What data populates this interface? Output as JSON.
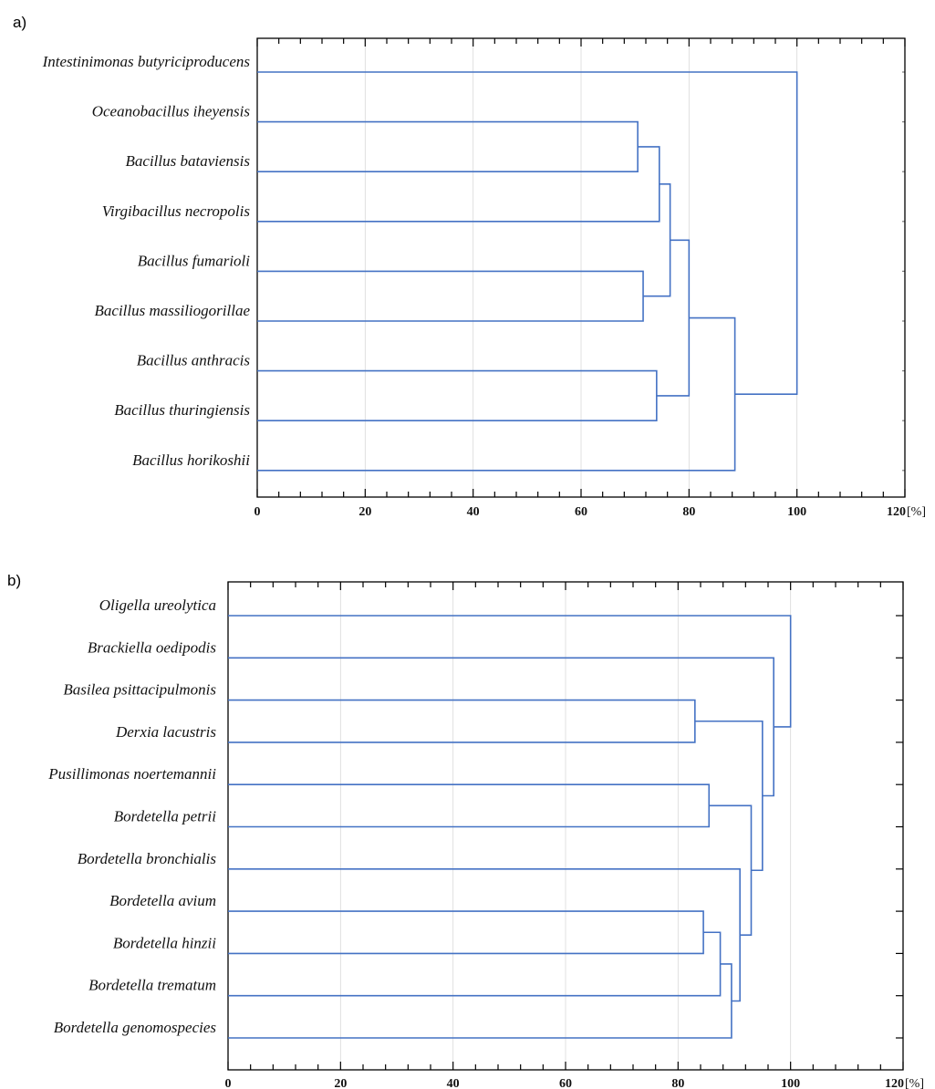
{
  "chart_data": [
    {
      "type": "dendrogram",
      "panel_label": "a)",
      "xlim": [
        0,
        120
      ],
      "x_ticks": [
        0,
        20,
        40,
        60,
        80,
        100,
        120
      ],
      "x_unit": "[%]",
      "line_color": "#4472c4",
      "leaves": [
        "Intestinimonas butyriciproducens",
        "Oceanobacillus iheyensis",
        "Bacillus bataviensis",
        "Virgibacillus necropolis",
        "Bacillus fumarioli",
        "Bacillus massiliogorillae",
        "Bacillus anthracis",
        "Bacillus thuringiensis",
        "Bacillus horikoshii"
      ],
      "merges": [
        {
          "children": [
            "L1",
            "L2"
          ],
          "height": 70.5
        },
        {
          "children": [
            "M0",
            "L3"
          ],
          "height": 74.5
        },
        {
          "children": [
            "L4",
            "L5"
          ],
          "height": 71.5
        },
        {
          "children": [
            "M1",
            "M2"
          ],
          "height": 76.5
        },
        {
          "children": [
            "L6",
            "L7"
          ],
          "height": 74.0
        },
        {
          "children": [
            "M3",
            "M4"
          ],
          "height": 80.0
        },
        {
          "children": [
            "M5",
            "L8"
          ],
          "height": 88.5
        },
        {
          "children": [
            "L0",
            "M6"
          ],
          "height": 100.0
        }
      ]
    },
    {
      "type": "dendrogram",
      "panel_label": "b)",
      "xlim": [
        0,
        120
      ],
      "x_ticks": [
        0,
        20,
        40,
        60,
        80,
        100,
        120
      ],
      "x_unit": "[%]",
      "line_color": "#4472c4",
      "leaves": [
        "Oligella ureolytica",
        "Brackiella oedipodis",
        "Basilea psittacipulmonis",
        "Derxia lacustris",
        "Pusillimonas noertemannii",
        "Bordetella petrii",
        "Bordetella bronchialis",
        "Bordetella avium",
        "Bordetella hinzii",
        "Bordetella trematum",
        "Bordetella genomospecies"
      ],
      "merges": [
        {
          "children": [
            "L2",
            "L3"
          ],
          "height": 83.0
        },
        {
          "children": [
            "L4",
            "L5"
          ],
          "height": 85.5
        },
        {
          "children": [
            "L7",
            "L8"
          ],
          "height": 84.5
        },
        {
          "children": [
            "M2",
            "L9"
          ],
          "height": 87.5
        },
        {
          "children": [
            "M3",
            "L10"
          ],
          "height": 89.5
        },
        {
          "children": [
            "L6",
            "M4"
          ],
          "height": 91.0
        },
        {
          "children": [
            "M1",
            "M5"
          ],
          "height": 93.0
        },
        {
          "children": [
            "M0",
            "M6"
          ],
          "height": 95.0
        },
        {
          "children": [
            "L1",
            "M7"
          ],
          "height": 97.0
        },
        {
          "children": [
            "L0",
            "M8"
          ],
          "height": 100.0
        }
      ]
    }
  ]
}
